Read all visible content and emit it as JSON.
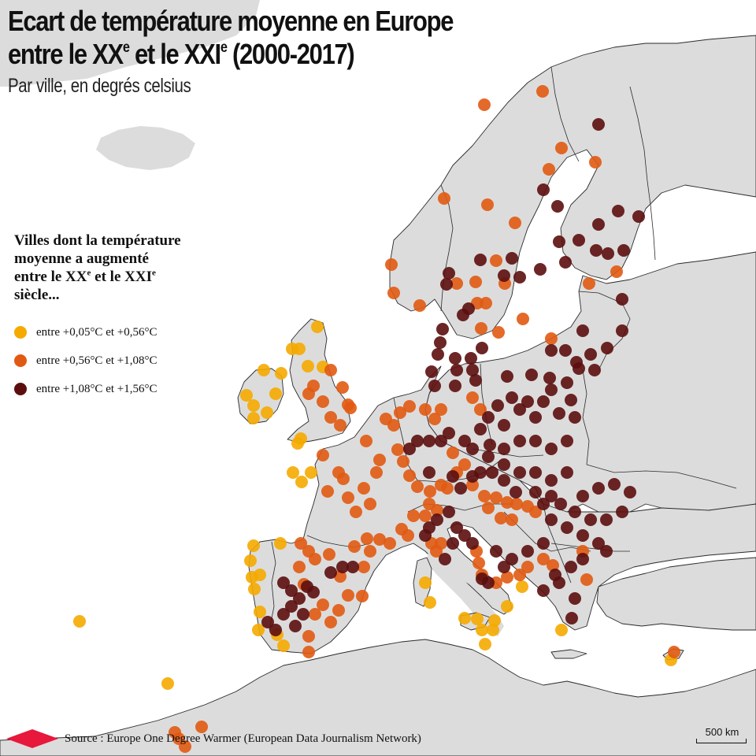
{
  "title": {
    "line1": "Ecart de température moyenne en Europe",
    "line2_a": "entre le XX",
    "line2_b": "et le XXI",
    "line2_c": "(2000-2017)",
    "sup": "e"
  },
  "subtitle": "Par ville, en degrés celsius",
  "legend": {
    "title_line1": "Villes dont la température",
    "title_line2": "moyenne a augmenté",
    "title_line3_a": "entre le XX",
    "title_line3_b": "et le XXI",
    "title_line4": "siècle...",
    "sup": "e",
    "items": [
      {
        "label": "entre +0,05°C et +0,56°C",
        "color": "#f5aa00"
      },
      {
        "label": "entre +0,56°C et +1,08°C",
        "color": "#e15a12"
      },
      {
        "label": "entre +1,08°C et +1,56°C",
        "color": "#5c0e0e"
      }
    ]
  },
  "source": {
    "label": "Source : Europe One Degree Warmer (European Data Journalism Network)",
    "logo_color": "#e8173c"
  },
  "scale": {
    "label": "500 km"
  },
  "colors": {
    "land": "#dcdcdc",
    "sea": "#ffffff",
    "border": "#2a2a2a"
  },
  "cities": {
    "low": [
      [
        403,
        415
      ],
      [
        380,
        443
      ],
      [
        371,
        443
      ],
      [
        335,
        470
      ],
      [
        357,
        474
      ],
      [
        391,
        465
      ],
      [
        410,
        466
      ],
      [
        313,
        502
      ],
      [
        350,
        500
      ],
      [
        322,
        515
      ],
      [
        339,
        524
      ],
      [
        322,
        531
      ],
      [
        382,
        557
      ],
      [
        378,
        563
      ],
      [
        372,
        600
      ],
      [
        395,
        600
      ],
      [
        383,
        612
      ],
      [
        322,
        693
      ],
      [
        356,
        690
      ],
      [
        318,
        712
      ],
      [
        330,
        730
      ],
      [
        320,
        733
      ],
      [
        323,
        748
      ],
      [
        330,
        777
      ],
      [
        328,
        800
      ],
      [
        360,
        820
      ],
      [
        352,
        806
      ],
      [
        101,
        789
      ],
      [
        213,
        868
      ],
      [
        540,
        740
      ],
      [
        546,
        765
      ],
      [
        590,
        785
      ],
      [
        606,
        786
      ],
      [
        612,
        800
      ],
      [
        626,
        800
      ],
      [
        628,
        788
      ],
      [
        616,
        818
      ],
      [
        644,
        770
      ],
      [
        663,
        745
      ],
      [
        713,
        800
      ],
      [
        852,
        838
      ]
    ],
    "mid": [
      [
        615,
        133
      ],
      [
        689,
        116
      ],
      [
        713,
        188
      ],
      [
        697,
        215
      ],
      [
        756,
        206
      ],
      [
        564,
        252
      ],
      [
        619,
        260
      ],
      [
        654,
        283
      ],
      [
        497,
        336
      ],
      [
        630,
        331
      ],
      [
        580,
        360
      ],
      [
        604,
        358
      ],
      [
        617,
        385
      ],
      [
        641,
        360
      ],
      [
        500,
        372
      ],
      [
        533,
        388
      ],
      [
        606,
        385
      ],
      [
        664,
        405
      ],
      [
        611,
        417
      ],
      [
        633,
        422
      ],
      [
        700,
        430
      ],
      [
        748,
        360
      ],
      [
        783,
        345
      ],
      [
        420,
        470
      ],
      [
        435,
        492
      ],
      [
        392,
        500
      ],
      [
        398,
        490
      ],
      [
        410,
        510
      ],
      [
        445,
        518
      ],
      [
        420,
        530
      ],
      [
        432,
        540
      ],
      [
        442,
        514
      ],
      [
        465,
        560
      ],
      [
        490,
        532
      ],
      [
        508,
        524
      ],
      [
        520,
        516
      ],
      [
        540,
        520
      ],
      [
        560,
        520
      ],
      [
        552,
        532
      ],
      [
        430,
        600
      ],
      [
        410,
        578
      ],
      [
        416,
        624
      ],
      [
        436,
        608
      ],
      [
        442,
        632
      ],
      [
        462,
        620
      ],
      [
        452,
        650
      ],
      [
        470,
        640
      ],
      [
        478,
        600
      ],
      [
        482,
        584
      ],
      [
        500,
        540
      ],
      [
        505,
        571
      ],
      [
        512,
        586
      ],
      [
        520,
        604
      ],
      [
        530,
        618
      ],
      [
        546,
        624
      ],
      [
        560,
        616
      ],
      [
        568,
        620
      ],
      [
        580,
        600
      ],
      [
        600,
        616
      ],
      [
        615,
        630
      ],
      [
        630,
        632
      ],
      [
        644,
        638
      ],
      [
        656,
        640
      ],
      [
        670,
        643
      ],
      [
        680,
        650
      ],
      [
        450,
        694
      ],
      [
        466,
        684
      ],
      [
        482,
        685
      ],
      [
        495,
        690
      ],
      [
        510,
        672
      ],
      [
        518,
        680
      ],
      [
        525,
        655
      ],
      [
        540,
        655
      ],
      [
        382,
        690
      ],
      [
        392,
        700
      ],
      [
        400,
        710
      ],
      [
        380,
        720
      ],
      [
        386,
        742
      ],
      [
        418,
        704
      ],
      [
        432,
        732
      ],
      [
        442,
        756
      ],
      [
        460,
        757
      ],
      [
        410,
        768
      ],
      [
        430,
        775
      ],
      [
        420,
        790
      ],
      [
        400,
        780
      ],
      [
        392,
        808
      ],
      [
        392,
        828
      ],
      [
        605,
        700
      ],
      [
        608,
        715
      ],
      [
        612,
        730
      ],
      [
        630,
        740
      ],
      [
        644,
        733
      ],
      [
        660,
        730
      ],
      [
        670,
        720
      ],
      [
        690,
        710
      ],
      [
        702,
        718
      ],
      [
        740,
        700
      ],
      [
        745,
        736
      ],
      [
        462,
        720
      ],
      [
        470,
        700
      ],
      [
        548,
        690
      ],
      [
        554,
        700
      ],
      [
        560,
        690
      ],
      [
        256,
        923
      ],
      [
        222,
        930
      ],
      [
        227,
        938
      ],
      [
        235,
        948
      ],
      [
        856,
        828
      ],
      [
        600,
        505
      ],
      [
        610,
        520
      ],
      [
        575,
        575
      ],
      [
        590,
        590
      ],
      [
        545,
        640
      ],
      [
        555,
        648
      ],
      [
        620,
        645
      ],
      [
        636,
        658
      ],
      [
        650,
        660
      ]
    ],
    "high": [
      [
        760,
        158
      ],
      [
        690,
        241
      ],
      [
        708,
        262
      ],
      [
        760,
        285
      ],
      [
        785,
        268
      ],
      [
        811,
        275
      ],
      [
        710,
        307
      ],
      [
        735,
        305
      ],
      [
        757,
        318
      ],
      [
        772,
        322
      ],
      [
        792,
        318
      ],
      [
        718,
        333
      ],
      [
        686,
        342
      ],
      [
        650,
        328
      ],
      [
        660,
        352
      ],
      [
        570,
        347
      ],
      [
        567,
        361
      ],
      [
        588,
        400
      ],
      [
        595,
        392
      ],
      [
        562,
        418
      ],
      [
        559,
        435
      ],
      [
        612,
        442
      ],
      [
        598,
        455
      ],
      [
        578,
        455
      ],
      [
        556,
        450
      ],
      [
        548,
        472
      ],
      [
        580,
        470
      ],
      [
        600,
        470
      ],
      [
        604,
        483
      ],
      [
        578,
        490
      ],
      [
        552,
        490
      ],
      [
        740,
        420
      ],
      [
        700,
        445
      ],
      [
        718,
        445
      ],
      [
        732,
        460
      ],
      [
        750,
        450
      ],
      [
        771,
        442
      ],
      [
        755,
        470
      ],
      [
        735,
        468
      ],
      [
        644,
        478
      ],
      [
        675,
        476
      ],
      [
        698,
        480
      ],
      [
        720,
        486
      ],
      [
        700,
        495
      ],
      [
        690,
        510
      ],
      [
        670,
        510
      ],
      [
        650,
        505
      ],
      [
        632,
        515
      ],
      [
        620,
        530
      ],
      [
        610,
        545
      ],
      [
        622,
        565
      ],
      [
        640,
        540
      ],
      [
        660,
        520
      ],
      [
        680,
        530
      ],
      [
        710,
        525
      ],
      [
        725,
        508
      ],
      [
        730,
        530
      ],
      [
        720,
        560
      ],
      [
        700,
        570
      ],
      [
        680,
        560
      ],
      [
        660,
        560
      ],
      [
        640,
        570
      ],
      [
        620,
        580
      ],
      [
        600,
        570
      ],
      [
        590,
        560
      ],
      [
        570,
        550
      ],
      [
        560,
        560
      ],
      [
        660,
        600
      ],
      [
        680,
        600
      ],
      [
        700,
        610
      ],
      [
        720,
        600
      ],
      [
        740,
        630
      ],
      [
        760,
        620
      ],
      [
        780,
        615
      ],
      [
        800,
        625
      ],
      [
        790,
        650
      ],
      [
        770,
        660
      ],
      [
        750,
        660
      ],
      [
        730,
        650
      ],
      [
        712,
        640
      ],
      [
        700,
        630
      ],
      [
        690,
        640
      ],
      [
        680,
        625
      ],
      [
        655,
        625
      ],
      [
        640,
        610
      ],
      [
        700,
        660
      ],
      [
        720,
        670
      ],
      [
        740,
        680
      ],
      [
        760,
        690
      ],
      [
        770,
        700
      ],
      [
        740,
        710
      ],
      [
        725,
        720
      ],
      [
        705,
        730
      ],
      [
        690,
        750
      ],
      [
        710,
        740
      ],
      [
        730,
        760
      ],
      [
        726,
        785
      ],
      [
        690,
        690
      ],
      [
        670,
        700
      ],
      [
        650,
        710
      ],
      [
        640,
        720
      ],
      [
        630,
        700
      ],
      [
        545,
        670
      ],
      [
        555,
        660
      ],
      [
        570,
        650
      ],
      [
        580,
        670
      ],
      [
        590,
        680
      ],
      [
        600,
        690
      ],
      [
        575,
        690
      ],
      [
        565,
        710
      ],
      [
        540,
        680
      ],
      [
        545,
        600
      ],
      [
        575,
        605
      ],
      [
        585,
        620
      ],
      [
        600,
        605
      ],
      [
        610,
        600
      ],
      [
        625,
        600
      ],
      [
        640,
        590
      ],
      [
        520,
        570
      ],
      [
        530,
        560
      ],
      [
        545,
        560
      ],
      [
        360,
        740
      ],
      [
        370,
        750
      ],
      [
        380,
        760
      ],
      [
        370,
        770
      ],
      [
        360,
        780
      ],
      [
        350,
        800
      ],
      [
        340,
        790
      ],
      [
        375,
        795
      ],
      [
        385,
        780
      ],
      [
        390,
        745
      ],
      [
        398,
        752
      ],
      [
        420,
        727
      ],
      [
        435,
        720
      ],
      [
        448,
        720
      ],
      [
        612,
        735
      ],
      [
        620,
        740
      ],
      [
        790,
        380
      ],
      [
        790,
        420
      ],
      [
        610,
        330
      ],
      [
        640,
        350
      ]
    ]
  }
}
